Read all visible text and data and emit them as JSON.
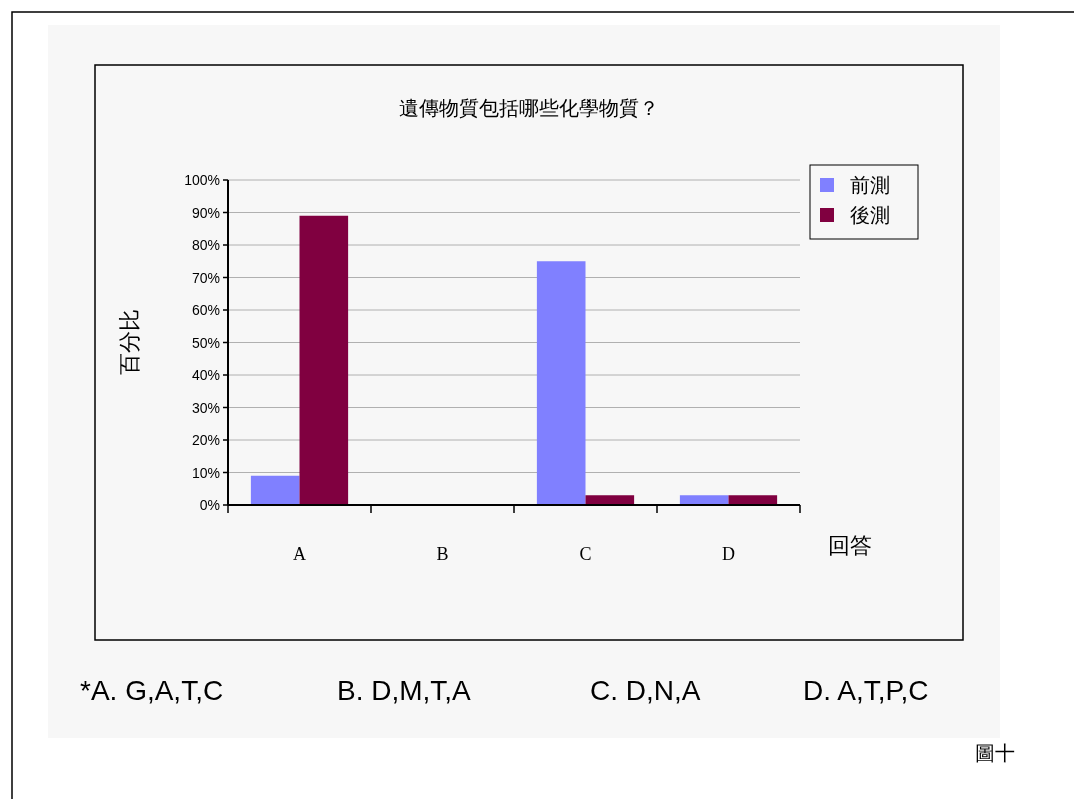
{
  "chart_data": {
    "type": "bar",
    "title": "遺傳物質包括哪些化學物質？",
    "xlabel": "回答",
    "ylabel": "百分比",
    "categories": [
      "A",
      "B",
      "C",
      "D"
    ],
    "series": [
      {
        "name": "前測",
        "color": "#8080ff",
        "values": [
          9,
          0,
          75,
          3
        ]
      },
      {
        "name": "後測",
        "color": "#800040",
        "values": [
          89,
          0,
          3,
          3
        ]
      }
    ],
    "ylim": [
      0,
      100
    ],
    "yticks": [
      {
        "value": 0,
        "label": "0%"
      },
      {
        "value": 10,
        "label": "10%"
      },
      {
        "value": 20,
        "label": "20%"
      },
      {
        "value": 30,
        "label": "30%"
      },
      {
        "value": 40,
        "label": "40%"
      },
      {
        "value": 50,
        "label": "50%"
      },
      {
        "value": 60,
        "label": "60%"
      },
      {
        "value": 70,
        "label": "70%"
      },
      {
        "value": 80,
        "label": "80%"
      },
      {
        "value": 90,
        "label": "90%"
      },
      {
        "value": 100,
        "label": "100%"
      }
    ],
    "grid": "y",
    "legend": "right",
    "annotations": [
      "*A. G,A,T,C",
      "B. D,M,T,A",
      "C. D,N,A",
      "D. A,T,P,C",
      "圖十"
    ]
  }
}
